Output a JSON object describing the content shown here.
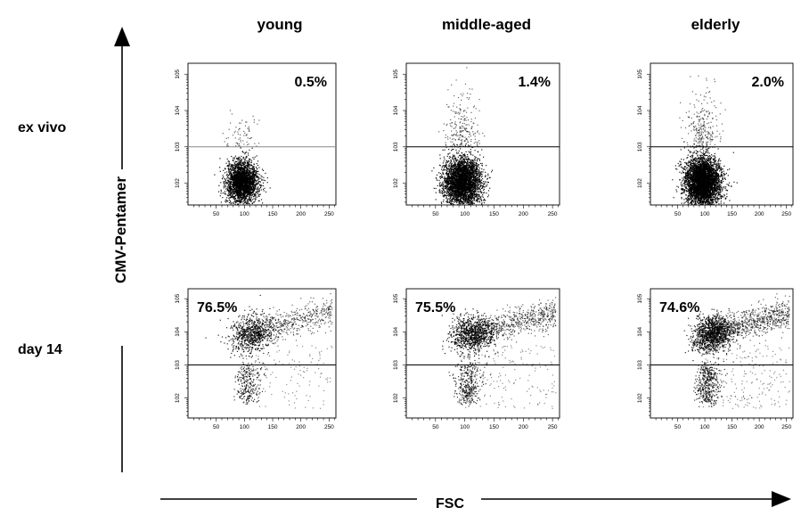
{
  "chart_data": {
    "type": "scatter",
    "columns": [
      "young",
      "middle-aged",
      "elderly"
    ],
    "rows": [
      "ex vivo",
      "day 14"
    ],
    "ylabel": "CMV-Pentamer",
    "xlabel": "FSC",
    "x_ticks": [
      "50",
      "100",
      "150",
      "200",
      "250"
    ],
    "y_ticks": [
      "10^2",
      "10^3",
      "10^4",
      "10^5"
    ],
    "xlim": [
      0,
      262
    ],
    "ylim_log10": [
      1.4,
      5.3
    ],
    "gate_y_log10": 3.0,
    "panels": [
      {
        "row": "ex vivo",
        "column": "young",
        "percent_label": "0.5%",
        "percent_above_gate": 0.5
      },
      {
        "row": "ex vivo",
        "column": "middle-aged",
        "percent_label": "1.4%",
        "percent_above_gate": 1.4
      },
      {
        "row": "ex vivo",
        "column": "elderly",
        "percent_label": "2.0%",
        "percent_above_gate": 2.0
      },
      {
        "row": "day 14",
        "column": "young",
        "percent_label": "76.5%",
        "percent_above_gate": 76.5
      },
      {
        "row": "day 14",
        "column": "middle-aged",
        "percent_label": "75.5%",
        "percent_above_gate": 75.5
      },
      {
        "row": "day 14",
        "column": "elderly",
        "percent_label": "74.6%",
        "percent_above_gate": 74.6
      }
    ]
  }
}
